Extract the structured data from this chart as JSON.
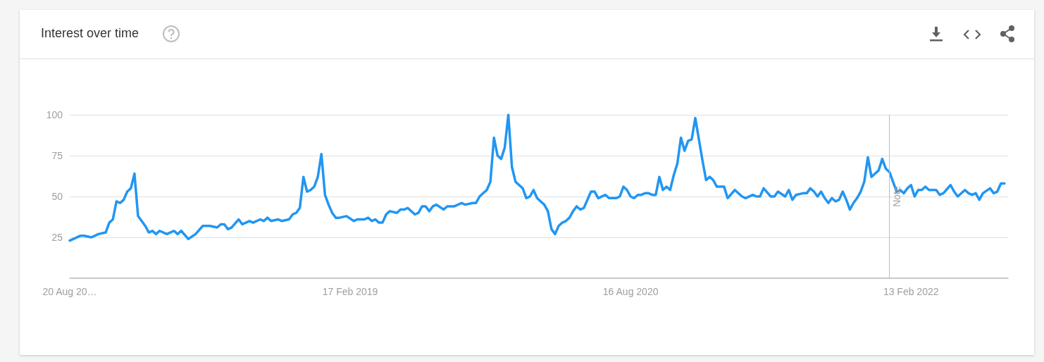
{
  "chart_data": {
    "type": "line",
    "title": "Interest over time",
    "x": [
      "2017-08-20",
      "2017-08-27",
      "2017-09-10",
      "2017-09-17",
      "2017-10-01",
      "2017-10-15",
      "2017-10-29",
      "2017-11-05",
      "2017-11-12",
      "2017-11-19",
      "2017-11-26",
      "2017-12-03",
      "2017-12-10",
      "2017-12-17",
      "2017-12-24",
      "2017-12-31",
      "2018-01-14",
      "2018-01-21",
      "2018-01-28",
      "2018-02-04",
      "2018-02-11",
      "2018-02-25",
      "2018-03-11",
      "2018-03-18",
      "2018-03-25",
      "2018-04-08",
      "2018-04-22",
      "2018-05-06",
      "2018-05-20",
      "2018-06-03",
      "2018-06-10",
      "2018-06-17",
      "2018-06-24",
      "2018-07-01",
      "2018-07-15",
      "2018-07-22",
      "2018-08-05",
      "2018-08-12",
      "2018-08-26",
      "2018-09-02",
      "2018-09-09",
      "2018-09-16",
      "2018-09-30",
      "2018-10-07",
      "2018-10-21",
      "2018-10-28",
      "2018-11-04",
      "2018-11-11",
      "2018-11-18",
      "2018-11-25",
      "2018-12-02",
      "2018-12-09",
      "2018-12-16",
      "2018-12-23",
      "2018-12-30",
      "2019-01-06",
      "2019-01-13",
      "2019-01-20",
      "2019-01-27",
      "2019-02-10",
      "2019-02-24",
      "2019-03-03",
      "2019-03-17",
      "2019-03-24",
      "2019-03-31",
      "2019-04-07",
      "2019-04-14",
      "2019-04-21",
      "2019-04-28",
      "2019-05-05",
      "2019-05-19",
      "2019-05-26",
      "2019-06-02",
      "2019-06-09",
      "2019-06-23",
      "2019-06-30",
      "2019-07-07",
      "2019-07-14",
      "2019-07-21",
      "2019-07-28",
      "2019-08-04",
      "2019-08-18",
      "2019-08-25",
      "2019-09-08",
      "2019-09-22",
      "2019-09-29",
      "2019-10-13",
      "2019-10-20",
      "2019-10-27",
      "2019-11-10",
      "2019-11-17",
      "2019-11-24",
      "2019-12-01",
      "2019-12-08",
      "2019-12-15",
      "2019-12-22",
      "2019-12-29",
      "2020-01-05",
      "2020-01-12",
      "2020-01-19",
      "2020-01-26",
      "2020-02-02",
      "2020-02-09",
      "2020-02-16",
      "2020-02-23",
      "2020-03-01",
      "2020-03-08",
      "2020-03-15",
      "2020-03-22",
      "2020-03-29",
      "2020-04-05",
      "2020-04-12",
      "2020-04-19",
      "2020-04-26",
      "2020-05-03",
      "2020-05-10",
      "2020-05-17",
      "2020-05-24",
      "2020-05-31",
      "2020-06-07",
      "2020-06-14",
      "2020-06-28",
      "2020-07-05",
      "2020-07-19",
      "2020-07-26",
      "2020-08-02",
      "2020-08-09",
      "2020-08-16",
      "2020-08-23",
      "2020-08-30",
      "2020-09-06",
      "2020-09-13",
      "2020-09-20",
      "2020-09-27",
      "2020-10-04",
      "2020-10-11",
      "2020-10-18",
      "2020-10-25",
      "2020-11-01",
      "2020-11-08",
      "2020-11-15",
      "2020-11-22",
      "2020-11-29",
      "2020-12-06",
      "2020-12-13",
      "2020-12-20",
      "2020-12-27",
      "2021-01-03",
      "2021-01-10",
      "2021-01-17",
      "2021-01-24",
      "2021-01-31",
      "2021-02-14",
      "2021-02-21",
      "2021-03-07",
      "2021-03-21",
      "2021-03-28",
      "2021-04-11",
      "2021-04-18",
      "2021-04-25",
      "2021-05-02",
      "2021-05-16",
      "2021-05-23",
      "2021-05-30",
      "2021-06-13",
      "2021-06-20",
      "2021-06-27",
      "2021-07-04",
      "2021-07-18",
      "2021-07-25",
      "2021-08-01",
      "2021-08-08",
      "2021-08-15",
      "2021-08-22",
      "2021-08-29",
      "2021-09-05",
      "2021-09-12",
      "2021-09-19",
      "2021-09-26",
      "2021-10-03",
      "2021-10-10",
      "2021-10-17",
      "2021-10-24",
      "2021-10-31",
      "2021-11-07",
      "2021-11-14",
      "2021-11-21",
      "2021-11-28",
      "2021-12-05",
      "2021-12-12",
      "2021-12-19",
      "2021-12-26",
      "2022-01-02",
      "2022-01-09",
      "2022-01-16",
      "2022-01-23",
      "2022-01-30",
      "2022-02-06",
      "2022-02-13",
      "2022-02-20",
      "2022-02-27",
      "2022-03-06",
      "2022-03-13",
      "2022-03-20",
      "2022-04-03",
      "2022-04-10",
      "2022-04-17",
      "2022-05-01",
      "2022-05-08",
      "2022-05-15",
      "2022-05-29",
      "2022-06-05",
      "2022-06-12",
      "2022-06-19",
      "2022-06-26",
      "2022-07-03",
      "2022-07-17",
      "2022-07-24",
      "2022-07-31",
      "2022-08-07",
      "2022-08-14"
    ],
    "series": [
      {
        "color": "#2196f3",
        "values": [
          23,
          24,
          26,
          26,
          25,
          27,
          28,
          34,
          36,
          47,
          46,
          48,
          53,
          55,
          64,
          38,
          32,
          28,
          29,
          27,
          29,
          27,
          29,
          27,
          29,
          24,
          27,
          32,
          32,
          31,
          33,
          33,
          30,
          31,
          36,
          33,
          35,
          34,
          36,
          35,
          37,
          35,
          36,
          35,
          36,
          39,
          40,
          43,
          62,
          53,
          54,
          56,
          62,
          76,
          51,
          45,
          40,
          37,
          37,
          38,
          35,
          36,
          36,
          37,
          35,
          36,
          34,
          34,
          39,
          41,
          40,
          42,
          42,
          43,
          39,
          40,
          44,
          44,
          41,
          44,
          45,
          42,
          44,
          44,
          46,
          45,
          46,
          46,
          50,
          54,
          59,
          86,
          75,
          73,
          80,
          100,
          68,
          59,
          57,
          55,
          49,
          50,
          54,
          49,
          47,
          45,
          41,
          30,
          27,
          32,
          34,
          35,
          37,
          41,
          44,
          42,
          43,
          48,
          53,
          53,
          49,
          51,
          49,
          49,
          50,
          56,
          54,
          50,
          49,
          51,
          51,
          52,
          52,
          51,
          51,
          62,
          54,
          56,
          54,
          63,
          70,
          86,
          78,
          84,
          85,
          98,
          85,
          72,
          60,
          62,
          60,
          56,
          56,
          49,
          54,
          50,
          49,
          51,
          50,
          50,
          55,
          50,
          50,
          53,
          50,
          54,
          48,
          51,
          52,
          52,
          55,
          53,
          50,
          53,
          49,
          46,
          49,
          47,
          48,
          53,
          48,
          42,
          46,
          49,
          53,
          59,
          74,
          62,
          64,
          66,
          73,
          67,
          65,
          59,
          53,
          54,
          52,
          55,
          57,
          50,
          54,
          54,
          56,
          54,
          54,
          51,
          52,
          57,
          53,
          50,
          54,
          52,
          51,
          52,
          48,
          52,
          55,
          52,
          53,
          58,
          58
        ]
      }
    ],
    "xlim": [
      "2017-08-20",
      "2022-08-21"
    ],
    "xticks": [
      {
        "value": "2017-08-20",
        "label": "20 Aug 20…"
      },
      {
        "value": "2019-02-17",
        "label": "17 Feb 2019"
      },
      {
        "value": "2020-08-16",
        "label": "16 Aug 2020"
      },
      {
        "value": "2022-02-13",
        "label": "13 Feb 2022"
      }
    ],
    "ylim": [
      0,
      100
    ],
    "yticks": [
      {
        "value": 0,
        "label": null
      },
      25,
      50,
      75,
      100
    ],
    "ref_lines": [
      {
        "axis": "x",
        "value": "2022-01-01",
        "label": "Note",
        "color": "#bdbdbd"
      }
    ],
    "grid": "y",
    "marker": "none",
    "line_style": "solid"
  }
}
